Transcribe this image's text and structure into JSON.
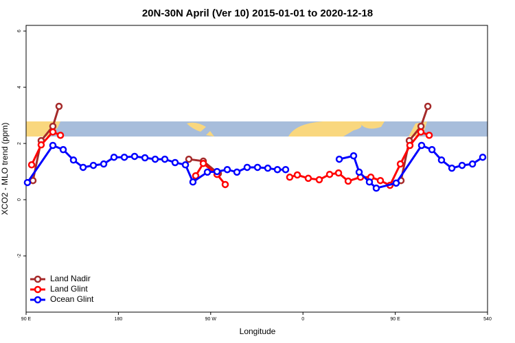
{
  "chart_data": {
    "type": "line",
    "title": "20N-30N April (Ver 10)   2015-01-01 to 2020-12-18",
    "xlabel": "Longitude",
    "ylabel": "XCO2 - MLO trend (ppm)",
    "xlim": [
      90,
      540
    ],
    "ylim": [
      -4,
      6.2
    ],
    "xticks": [
      {
        "value": 90,
        "label": "90 E"
      },
      180,
      {
        "value": 270,
        "label": "90 W"
      },
      {
        "value": 360,
        "label": "0"
      },
      {
        "value": 450,
        "label": "90 E"
      },
      540
    ],
    "yticks": [
      -2,
      0,
      2,
      4,
      6
    ],
    "legend": "bottomleft",
    "series": [
      {
        "name": "Land Nadir",
        "color": "#a52a2a",
        "x": [
          96.7,
          104.7,
          116.1,
          122.1,
          null,
          248.7,
          262.8,
          277.5,
          null,
          455.6,
          463.7,
          475.1,
          481.8
        ],
        "values": [
          0.68,
          2.1,
          2.61,
          3.32,
          null,
          1.44,
          1.37,
          0.93,
          null,
          0.68,
          2.1,
          2.61,
          3.32
        ]
      },
      {
        "name": "Land Glint",
        "color": "#ff0000",
        "x": [
          95.4,
          104.7,
          116.1,
          123.5,
          null,
          255.4,
          262.8,
          276.2,
          284.2,
          null,
          347.1,
          354.5,
          365.2,
          375.9,
          386,
          394.7,
          404.1,
          416.1,
          426.2,
          435.5,
          444.9,
          455,
          464.3,
          475,
          483.1
        ],
        "values": [
          1.24,
          1.95,
          2.41,
          2.29,
          null,
          0.85,
          1.29,
          0.9,
          0.54,
          null,
          0.8,
          0.88,
          0.76,
          0.71,
          0.9,
          0.95,
          0.66,
          0.8,
          0.8,
          0.68,
          0.51,
          1.27,
          1.93,
          2.41,
          2.29
        ]
      },
      {
        "name": "Ocean Glint",
        "color": "#0000ff",
        "x": [
          91.3,
          116.1,
          126.2,
          136.2,
          145.6,
          155.6,
          165.7,
          175.7,
          185.8,
          195.8,
          205.9,
          215.9,
          225.3,
          235.3,
          245.4,
          252.7,
          266.8,
          276.2,
          286.2,
          295.6,
          305.6,
          315.7,
          325.7,
          335.1,
          343.1,
          null,
          395.4,
          409.4,
          414.8,
          424.8,
          431.5,
          450.9,
          475.7,
          485.8,
          495.1,
          505.2,
          515.2,
          525.3,
          535.3
        ],
        "values": [
          0.61,
          1.93,
          1.78,
          1.41,
          1.15,
          1.22,
          1.27,
          1.51,
          1.51,
          1.54,
          1.49,
          1.44,
          1.44,
          1.32,
          1.24,
          0.63,
          0.98,
          1.0,
          1.07,
          0.98,
          1.15,
          1.15,
          1.12,
          1.07,
          1.07,
          null,
          1.44,
          1.56,
          0.98,
          0.63,
          0.41,
          0.59,
          1.93,
          1.78,
          1.41,
          1.12,
          1.22,
          1.27,
          1.51
        ]
      }
    ]
  }
}
